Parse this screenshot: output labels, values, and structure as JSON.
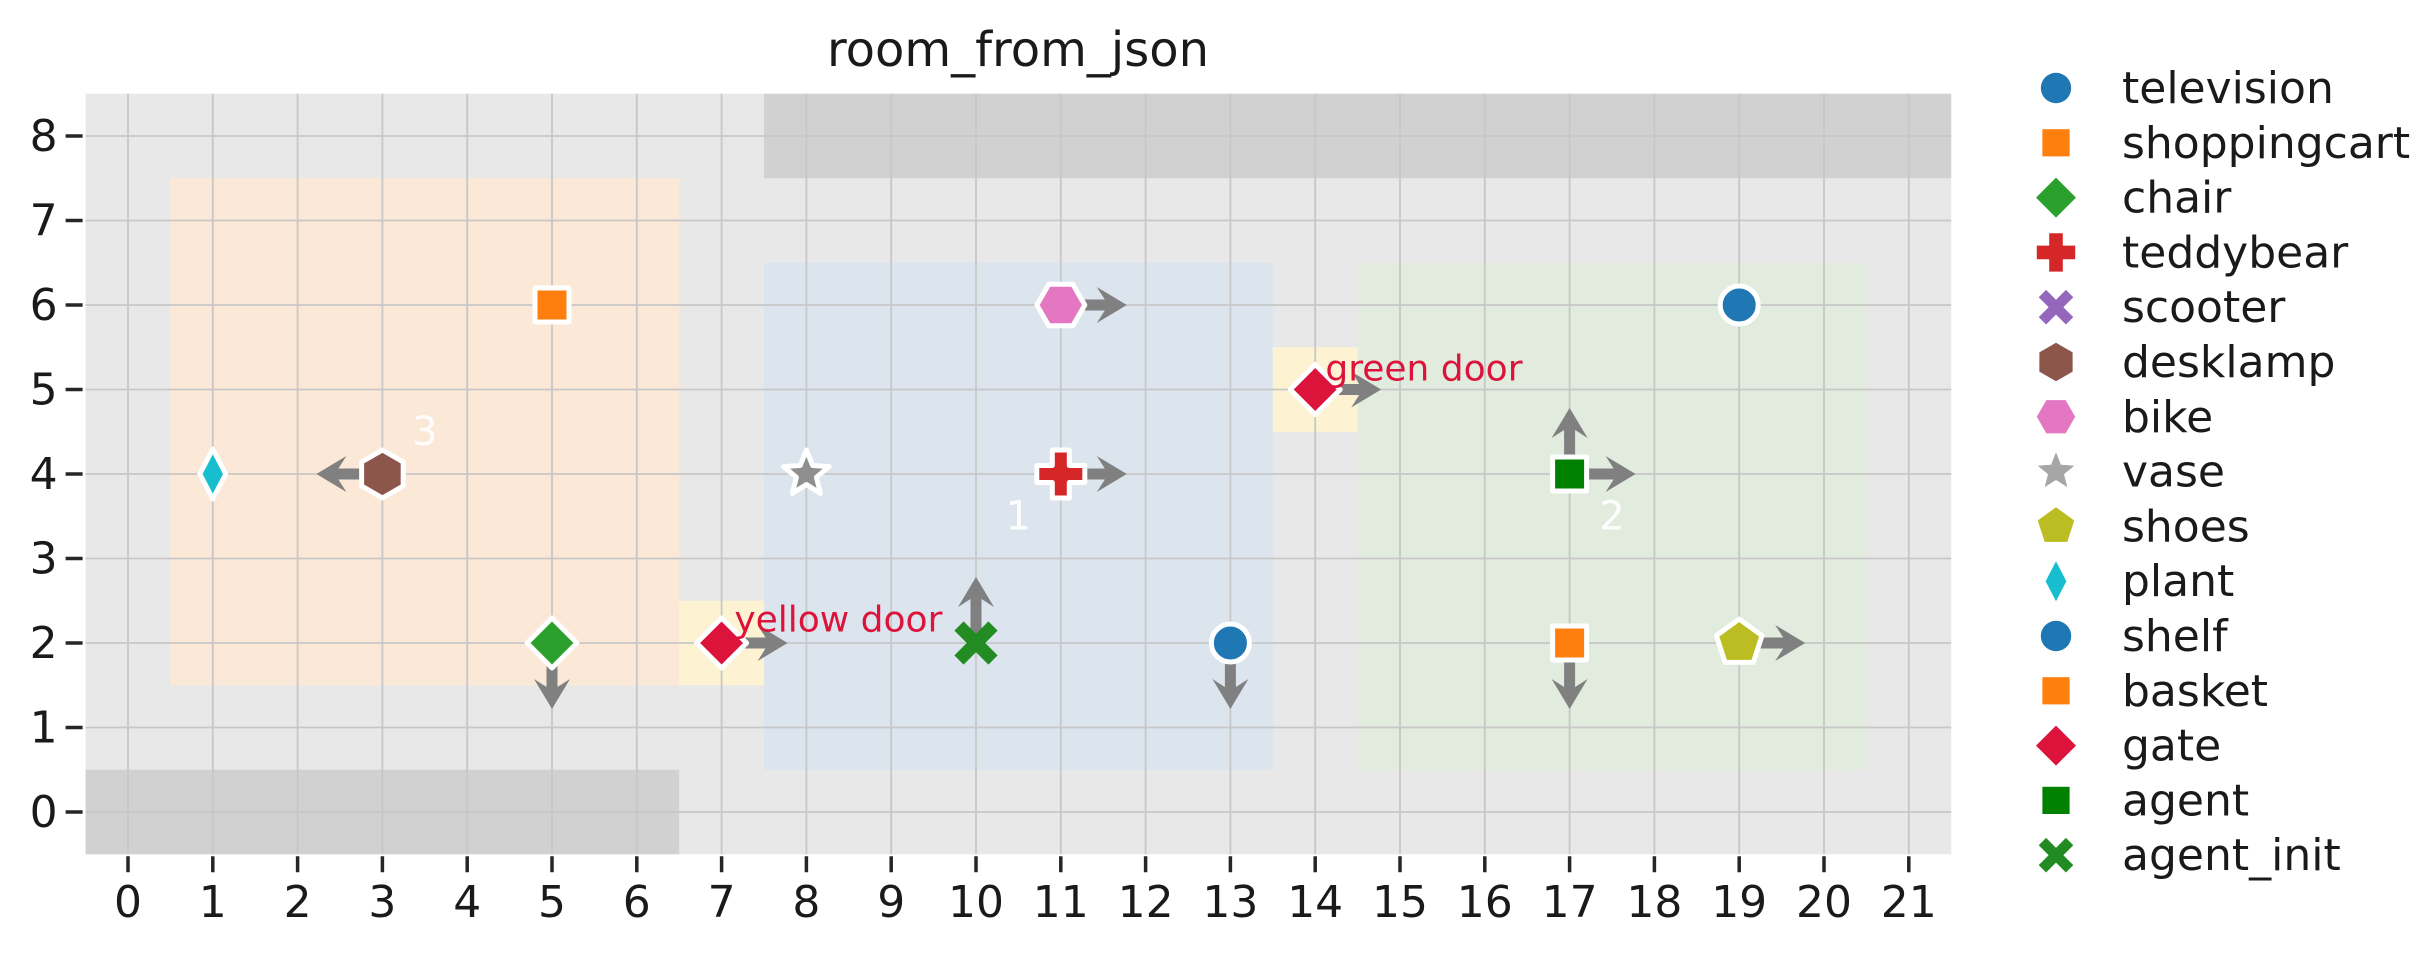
{
  "title": "room_from_json",
  "chart_data": {
    "type": "scatter",
    "title": "room_from_json",
    "xlim": [
      -0.5,
      21.5
    ],
    "ylim": [
      -0.5,
      8.5
    ],
    "x_ticks": [
      0,
      1,
      2,
      3,
      4,
      5,
      6,
      7,
      8,
      9,
      10,
      11,
      12,
      13,
      14,
      15,
      16,
      17,
      18,
      19,
      20,
      21
    ],
    "y_ticks": [
      0,
      1,
      2,
      3,
      4,
      5,
      6,
      7,
      8
    ],
    "grid": true,
    "legend_position": "right",
    "colors": {
      "plot_background": "#e8e8e8",
      "grid_line": "#c7c7c7",
      "wall_fill": "#d1d1d1",
      "door_fill": "#fdf3d3",
      "arrow": "#808080",
      "marker_edge": "#ffffff",
      "text": "#1a1a1a",
      "door_label": "#dc143c",
      "room_label": "rgba(255,255,255,0.9)"
    },
    "rooms": [
      {
        "label": "3",
        "x0": 0.5,
        "y0": 1.5,
        "x1": 6.5,
        "y1": 7.5,
        "fill": "#fbe8d7",
        "label_x": 3.5,
        "label_y": 4.5
      },
      {
        "label": "1",
        "x0": 7.5,
        "y0": 0.5,
        "x1": 13.5,
        "y1": 6.5,
        "fill": "#dce5ee",
        "label_x": 10.5,
        "label_y": 3.5
      },
      {
        "label": "2",
        "x0": 14.5,
        "y0": 0.5,
        "x1": 20.5,
        "y1": 6.5,
        "fill": "#e1ecde",
        "label_x": 17.5,
        "label_y": 3.5
      }
    ],
    "walls": [
      {
        "x0": -0.5,
        "y0": -0.5,
        "x1": 6.5,
        "y1": 0.5
      },
      {
        "x0": 7.5,
        "y0": 7.5,
        "x1": 21.5,
        "y1": 8.5
      }
    ],
    "doors": [
      {
        "label": "yellow door",
        "x0": 6.5,
        "y0": 1.5,
        "x1": 7.5,
        "y1": 2.5,
        "label_x": 7.15,
        "label_y": 2.28
      },
      {
        "label": "green door",
        "x0": 13.5,
        "y0": 4.5,
        "x1": 14.5,
        "y1": 5.5,
        "label_x": 14.12,
        "label_y": 5.25
      }
    ],
    "objects": [
      {
        "name": "television",
        "marker": "circle",
        "color": "#1f77b4",
        "x": 19,
        "y": 6,
        "arrows": []
      },
      {
        "name": "shoppingcart",
        "marker": "square",
        "color": "#ff7f0e",
        "x": 5,
        "y": 6,
        "arrows": []
      },
      {
        "name": "chair",
        "marker": "diamond",
        "color": "#2ca02c",
        "x": 5,
        "y": 2,
        "arrows": [
          "down"
        ]
      },
      {
        "name": "teddybear",
        "marker": "plus",
        "color": "#d62728",
        "x": 11,
        "y": 4,
        "arrows": [
          "right"
        ]
      },
      {
        "name": "desklamp",
        "marker": "hexagon-v",
        "color": "#8c564b",
        "x": 3,
        "y": 4,
        "arrows": [
          "left"
        ]
      },
      {
        "name": "bike",
        "marker": "hexagon-h",
        "color": "#e377c2",
        "x": 11,
        "y": 6,
        "arrows": [
          "right"
        ]
      },
      {
        "name": "vase",
        "marker": "star",
        "color": "#8f8f8f",
        "x": 8,
        "y": 4,
        "arrows": []
      },
      {
        "name": "shoes",
        "marker": "pentagon",
        "color": "#bcbd22",
        "x": 19,
        "y": 2,
        "arrows": [
          "right"
        ]
      },
      {
        "name": "plant",
        "marker": "thin-diamond",
        "color": "#17becf",
        "x": 1,
        "y": 4,
        "arrows": []
      },
      {
        "name": "shelf",
        "marker": "circle",
        "color": "#1f77b4",
        "x": 13,
        "y": 2,
        "arrows": [
          "down"
        ]
      },
      {
        "name": "basket",
        "marker": "square",
        "color": "#ff7f0e",
        "x": 17,
        "y": 2,
        "arrows": [
          "down"
        ]
      },
      {
        "name": "gate",
        "marker": "diamond",
        "color": "#dc143c",
        "x": 7,
        "y": 2,
        "arrows": [
          "right"
        ]
      },
      {
        "name": "gate",
        "marker": "diamond",
        "color": "#dc143c",
        "x": 14,
        "y": 5,
        "arrows": [
          "right"
        ]
      },
      {
        "name": "agent",
        "marker": "square",
        "color": "#008000",
        "x": 17,
        "y": 4,
        "arrows": [
          "up",
          "right"
        ]
      },
      {
        "name": "agent_init",
        "marker": "x",
        "color": "#228b22",
        "x": 10,
        "y": 2,
        "arrows": [
          "up"
        ]
      }
    ],
    "legend": [
      {
        "label": "television",
        "marker": "circle",
        "color": "#1f77b4"
      },
      {
        "label": "shoppingcart",
        "marker": "square",
        "color": "#ff7f0e"
      },
      {
        "label": "chair",
        "marker": "diamond",
        "color": "#2ca02c"
      },
      {
        "label": "teddybear",
        "marker": "plus",
        "color": "#d62728"
      },
      {
        "label": "scooter",
        "marker": "x",
        "color": "#9467bd"
      },
      {
        "label": "desklamp",
        "marker": "hexagon-v",
        "color": "#8c564b"
      },
      {
        "label": "bike",
        "marker": "hexagon-h",
        "color": "#e377c2"
      },
      {
        "label": "vase",
        "marker": "star",
        "color": "#a6a6a6"
      },
      {
        "label": "shoes",
        "marker": "pentagon",
        "color": "#bcbd22"
      },
      {
        "label": "plant",
        "marker": "thin-diamond",
        "color": "#17becf"
      },
      {
        "label": "shelf",
        "marker": "circle",
        "color": "#1f77b4"
      },
      {
        "label": "basket",
        "marker": "square",
        "color": "#ff7f0e"
      },
      {
        "label": "gate",
        "marker": "diamond",
        "color": "#dc143c"
      },
      {
        "label": "agent",
        "marker": "square",
        "color": "#008000"
      },
      {
        "label": "agent_init",
        "marker": "x",
        "color": "#228b22"
      }
    ]
  }
}
